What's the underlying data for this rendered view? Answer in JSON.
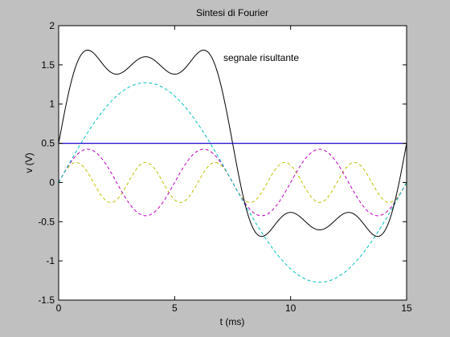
{
  "window": {
    "background": "#c0c0c0",
    "plot_background": "#ffffff"
  },
  "chart_data": {
    "type": "line",
    "title": "Sintesi di Fourier",
    "xlabel": "t (ms)",
    "ylabel": "v (V)",
    "xlim": [
      0,
      15
    ],
    "ylim": [
      -1.5,
      2
    ],
    "xticks": [
      0,
      5,
      10,
      15
    ],
    "yticks": [
      -1.5,
      -1,
      -0.5,
      0,
      0.5,
      1,
      1.5,
      2
    ],
    "grid": false,
    "annotations": [
      {
        "text": "segnale risultante",
        "x": 7.1,
        "y": 1.55
      }
    ],
    "period_ms": 15,
    "dc_offset": 0.5,
    "series": [
      {
        "role": "resultant",
        "style": "solid",
        "color": "#000000",
        "formula": "0.5 + 1.273*sin(wt) + 0.424*sin(3wt) + 0.255*sin(5wt)"
      },
      {
        "role": "dc",
        "style": "solid",
        "color": "#0000ff",
        "value": 0.5
      },
      {
        "role": "harmonic-1",
        "style": "dashed",
        "color": "#00bfbf",
        "amplitude": 1.273,
        "harmonic": 1
      },
      {
        "role": "harmonic-3",
        "style": "dashed",
        "color": "#bf00bf",
        "amplitude": 0.424,
        "harmonic": 3
      },
      {
        "role": "harmonic-5",
        "style": "dashed",
        "color": "#bfbf00",
        "amplitude": 0.255,
        "harmonic": 5
      }
    ],
    "overlay_lines": [
      {
        "role": "dc-green",
        "color": "#00a000",
        "value": 0.5
      },
      {
        "role": "dc-red",
        "color": "#ff0000",
        "value": 0.5
      }
    ]
  }
}
